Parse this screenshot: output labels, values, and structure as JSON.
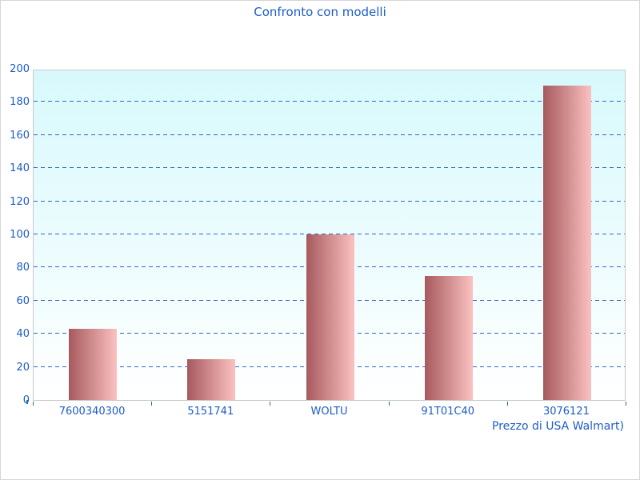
{
  "chart_data": {
    "type": "bar",
    "title": "Confronto con modelli",
    "categories": [
      "7600340300",
      "5151741",
      "WOLTU",
      "91T01C40",
      "3076121"
    ],
    "values": [
      43,
      24.5,
      100,
      75,
      190
    ],
    "xlabel": "Prezzo di USA Walmart)",
    "ylabel": "",
    "ylim": [
      0,
      200
    ],
    "yticks": [
      0,
      20,
      40,
      60,
      80,
      100,
      120,
      140,
      160,
      180,
      200
    ],
    "grid": "horizontal-dashed",
    "legend": "none",
    "colors": {
      "text_blue": "#1d5cc9",
      "grid_blue": "#3465c8",
      "tick_blue": "#1f6ab5",
      "axis_gray": "#c9c9c9",
      "figure_border": "#d6d6d6",
      "bar_gradient_left": "#a65a5e",
      "bar_gradient_right": "#fbc1c0",
      "plot_bg_top": "#d7f9fc",
      "plot_bg_bottom": "#ffffff"
    }
  }
}
